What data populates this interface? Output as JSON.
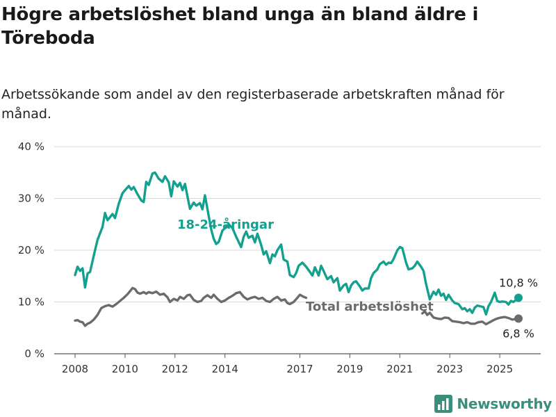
{
  "header": {
    "title": "Högre arbetslöshet bland unga än bland äldre i Töreboda",
    "subtitle": "Arbetssökande som andel av den registerbaserade arbetskraften månad för månad."
  },
  "brand": {
    "name": "Newsworthy",
    "logo_icon": "bar-chart-logo-icon",
    "color": "#3a8e7e"
  },
  "chart_data": {
    "type": "line",
    "title": "Högre arbetslöshet bland unga än bland äldre i Töreboda",
    "subtitle": "Arbetssökande som andel av den registerbaserade arbetskraften månad för månad.",
    "xlabel": "",
    "ylabel": "",
    "x_domain": [
      2008,
      2025.75
    ],
    "ylim": [
      0,
      40
    ],
    "y_ticks": [
      0,
      10,
      20,
      30,
      40
    ],
    "y_tick_labels": [
      "0 %",
      "10 %",
      "20 %",
      "30 %",
      "40 %"
    ],
    "x_ticks": [
      2008,
      2010,
      2012,
      2014,
      2017,
      2019,
      2021,
      2023,
      2025
    ],
    "x_tick_labels": [
      "2008",
      "2010",
      "2012",
      "2014",
      "2017",
      "2019",
      "2021",
      "2023",
      "2025"
    ],
    "grid": "horizontal",
    "series": [
      {
        "name": "18-24-åringar",
        "color": "#13a08f",
        "end_label": "10,8 %",
        "points": [
          [
            2008.0,
            15.2
          ],
          [
            2008.1,
            16.8
          ],
          [
            2008.2,
            16.0
          ],
          [
            2008.3,
            16.5
          ],
          [
            2008.4,
            12.8
          ],
          [
            2008.5,
            15.5
          ],
          [
            2008.6,
            15.8
          ],
          [
            2008.75,
            19.0
          ],
          [
            2008.9,
            22.0
          ],
          [
            2009.1,
            24.5
          ],
          [
            2009.2,
            27.2
          ],
          [
            2009.3,
            25.8
          ],
          [
            2009.5,
            27.0
          ],
          [
            2009.6,
            26.2
          ],
          [
            2009.75,
            29.0
          ],
          [
            2009.9,
            31.0
          ],
          [
            2010.0,
            31.6
          ],
          [
            2010.15,
            32.4
          ],
          [
            2010.25,
            31.7
          ],
          [
            2010.35,
            32.2
          ],
          [
            2010.5,
            30.8
          ],
          [
            2010.65,
            29.6
          ],
          [
            2010.75,
            29.3
          ],
          [
            2010.85,
            33.2
          ],
          [
            2010.95,
            32.6
          ],
          [
            2011.1,
            34.8
          ],
          [
            2011.2,
            35.0
          ],
          [
            2011.35,
            33.8
          ],
          [
            2011.5,
            33.2
          ],
          [
            2011.6,
            34.3
          ],
          [
            2011.75,
            33.1
          ],
          [
            2011.85,
            30.4
          ],
          [
            2011.95,
            33.3
          ],
          [
            2012.1,
            32.3
          ],
          [
            2012.2,
            33.0
          ],
          [
            2012.3,
            31.6
          ],
          [
            2012.4,
            32.8
          ],
          [
            2012.5,
            30.4
          ],
          [
            2012.6,
            28.0
          ],
          [
            2012.75,
            29.2
          ],
          [
            2012.85,
            28.6
          ],
          [
            2013.0,
            29.1
          ],
          [
            2013.1,
            27.9
          ],
          [
            2013.2,
            30.6
          ],
          [
            2013.35,
            26.6
          ],
          [
            2013.45,
            24.0
          ],
          [
            2013.55,
            22.2
          ],
          [
            2013.65,
            21.2
          ],
          [
            2013.75,
            21.6
          ],
          [
            2013.9,
            23.8
          ],
          [
            2014.05,
            24.5
          ],
          [
            2014.15,
            25.0
          ],
          [
            2014.3,
            24.3
          ],
          [
            2014.45,
            22.6
          ],
          [
            2014.55,
            21.6
          ],
          [
            2014.65,
            20.6
          ],
          [
            2014.75,
            22.6
          ],
          [
            2014.85,
            23.6
          ],
          [
            2014.95,
            22.4
          ],
          [
            2015.1,
            22.8
          ],
          [
            2015.2,
            21.5
          ],
          [
            2015.3,
            23.2
          ],
          [
            2015.45,
            21.0
          ],
          [
            2015.55,
            19.2
          ],
          [
            2015.65,
            19.8
          ],
          [
            2015.8,
            17.5
          ],
          [
            2015.9,
            19.2
          ],
          [
            2016.0,
            18.8
          ],
          [
            2016.1,
            20.0
          ],
          [
            2016.25,
            21.1
          ],
          [
            2016.35,
            18.2
          ],
          [
            2016.5,
            17.8
          ],
          [
            2016.6,
            15.2
          ],
          [
            2016.75,
            14.8
          ],
          [
            2016.85,
            15.6
          ],
          [
            2016.95,
            17.0
          ],
          [
            2017.1,
            17.6
          ],
          [
            2017.25,
            16.8
          ],
          [
            2017.4,
            15.8
          ],
          [
            2017.5,
            15.1
          ],
          [
            2017.6,
            16.7
          ],
          [
            2017.75,
            15.1
          ],
          [
            2017.85,
            17.0
          ],
          [
            2017.95,
            16.0
          ],
          [
            2018.1,
            14.4
          ],
          [
            2018.25,
            15.0
          ],
          [
            2018.35,
            13.8
          ],
          [
            2018.5,
            14.6
          ],
          [
            2018.6,
            12.2
          ],
          [
            2018.75,
            13.2
          ],
          [
            2018.85,
            13.5
          ],
          [
            2018.95,
            11.9
          ],
          [
            2019.05,
            13.2
          ],
          [
            2019.15,
            13.8
          ],
          [
            2019.25,
            14.0
          ],
          [
            2019.4,
            13.0
          ],
          [
            2019.5,
            12.2
          ],
          [
            2019.6,
            12.6
          ],
          [
            2019.75,
            12.6
          ],
          [
            2019.85,
            14.6
          ],
          [
            2019.95,
            15.6
          ],
          [
            2020.1,
            16.3
          ],
          [
            2020.2,
            17.3
          ],
          [
            2020.35,
            17.8
          ],
          [
            2020.45,
            17.2
          ],
          [
            2020.55,
            17.6
          ],
          [
            2020.65,
            17.5
          ],
          [
            2020.75,
            18.3
          ],
          [
            2020.9,
            20.0
          ],
          [
            2021.0,
            20.6
          ],
          [
            2021.1,
            20.4
          ],
          [
            2021.25,
            17.6
          ],
          [
            2021.35,
            16.3
          ],
          [
            2021.5,
            16.5
          ],
          [
            2021.6,
            17.0
          ],
          [
            2021.7,
            17.8
          ],
          [
            2021.85,
            16.8
          ],
          [
            2021.95,
            16.0
          ],
          [
            2022.05,
            13.5
          ],
          [
            2022.2,
            10.5
          ],
          [
            2022.35,
            12.0
          ],
          [
            2022.45,
            11.4
          ],
          [
            2022.55,
            12.4
          ],
          [
            2022.65,
            11.2
          ],
          [
            2022.75,
            11.6
          ],
          [
            2022.85,
            10.4
          ],
          [
            2022.95,
            11.4
          ],
          [
            2023.1,
            10.3
          ],
          [
            2023.2,
            9.8
          ],
          [
            2023.35,
            9.6
          ],
          [
            2023.5,
            8.6
          ],
          [
            2023.6,
            8.8
          ],
          [
            2023.7,
            8.2
          ],
          [
            2023.8,
            8.6
          ],
          [
            2023.9,
            7.9
          ],
          [
            2024.0,
            8.9
          ],
          [
            2024.1,
            9.3
          ],
          [
            2024.2,
            9.2
          ],
          [
            2024.35,
            9.0
          ],
          [
            2024.45,
            7.6
          ],
          [
            2024.55,
            9.2
          ],
          [
            2024.65,
            10.0
          ],
          [
            2024.8,
            11.8
          ],
          [
            2024.9,
            10.2
          ],
          [
            2025.0,
            10.0
          ],
          [
            2025.1,
            10.1
          ],
          [
            2025.25,
            10.0
          ],
          [
            2025.35,
            9.5
          ],
          [
            2025.45,
            10.2
          ],
          [
            2025.55,
            10.0
          ],
          [
            2025.65,
            10.4
          ],
          [
            2025.75,
            10.8
          ]
        ]
      },
      {
        "name": "Total arbetslöshet",
        "color": "#6b6b6e",
        "end_label": "6,8 %",
        "points": [
          [
            2008.0,
            6.4
          ],
          [
            2008.1,
            6.5
          ],
          [
            2008.2,
            6.2
          ],
          [
            2008.3,
            6.1
          ],
          [
            2008.4,
            5.4
          ],
          [
            2008.5,
            5.8
          ],
          [
            2008.6,
            6.0
          ],
          [
            2008.75,
            6.6
          ],
          [
            2008.9,
            7.5
          ],
          [
            2009.05,
            8.8
          ],
          [
            2009.2,
            9.2
          ],
          [
            2009.35,
            9.4
          ],
          [
            2009.5,
            9.1
          ],
          [
            2009.65,
            9.6
          ],
          [
            2009.8,
            10.2
          ],
          [
            2009.95,
            10.8
          ],
          [
            2010.1,
            11.5
          ],
          [
            2010.2,
            12.1
          ],
          [
            2010.3,
            12.7
          ],
          [
            2010.4,
            12.5
          ],
          [
            2010.5,
            11.8
          ],
          [
            2010.6,
            11.6
          ],
          [
            2010.75,
            11.9
          ],
          [
            2010.85,
            11.6
          ],
          [
            2010.95,
            11.9
          ],
          [
            2011.1,
            11.7
          ],
          [
            2011.25,
            12.0
          ],
          [
            2011.4,
            11.4
          ],
          [
            2011.55,
            11.6
          ],
          [
            2011.7,
            10.9
          ],
          [
            2011.8,
            10.0
          ],
          [
            2011.95,
            10.6
          ],
          [
            2012.1,
            10.3
          ],
          [
            2012.2,
            11.0
          ],
          [
            2012.35,
            10.6
          ],
          [
            2012.5,
            11.3
          ],
          [
            2012.6,
            11.4
          ],
          [
            2012.75,
            10.4
          ],
          [
            2012.9,
            10.0
          ],
          [
            2013.05,
            10.2
          ],
          [
            2013.15,
            10.8
          ],
          [
            2013.3,
            11.3
          ],
          [
            2013.45,
            10.8
          ],
          [
            2013.55,
            11.4
          ],
          [
            2013.7,
            10.6
          ],
          [
            2013.85,
            10.0
          ],
          [
            2014.0,
            10.3
          ],
          [
            2014.15,
            10.8
          ],
          [
            2014.3,
            11.2
          ],
          [
            2014.45,
            11.7
          ],
          [
            2014.6,
            11.9
          ],
          [
            2014.75,
            11.0
          ],
          [
            2014.9,
            10.5
          ],
          [
            2015.05,
            10.8
          ],
          [
            2015.2,
            11.0
          ],
          [
            2015.35,
            10.6
          ],
          [
            2015.5,
            10.8
          ],
          [
            2015.65,
            10.2
          ],
          [
            2015.8,
            10.0
          ],
          [
            2015.95,
            10.6
          ],
          [
            2016.1,
            11.0
          ],
          [
            2016.25,
            10.3
          ],
          [
            2016.4,
            10.5
          ],
          [
            2016.5,
            9.8
          ],
          [
            2016.6,
            9.6
          ],
          [
            2016.75,
            10.0
          ],
          [
            2016.9,
            10.8
          ],
          [
            2017.0,
            11.4
          ],
          [
            2017.15,
            11.0
          ],
          [
            2017.25,
            10.8
          ],
          [
            2021.9,
            7.8
          ],
          [
            2022.0,
            8.2
          ],
          [
            2022.1,
            7.5
          ],
          [
            2022.2,
            7.9
          ],
          [
            2022.35,
            7.0
          ],
          [
            2022.5,
            6.8
          ],
          [
            2022.65,
            6.7
          ],
          [
            2022.8,
            7.0
          ],
          [
            2022.95,
            6.9
          ],
          [
            2023.1,
            6.3
          ],
          [
            2023.25,
            6.2
          ],
          [
            2023.4,
            6.1
          ],
          [
            2023.55,
            5.9
          ],
          [
            2023.7,
            6.1
          ],
          [
            2023.85,
            5.8
          ],
          [
            2024.0,
            5.8
          ],
          [
            2024.15,
            6.1
          ],
          [
            2024.3,
            6.2
          ],
          [
            2024.45,
            5.7
          ],
          [
            2024.6,
            6.1
          ],
          [
            2024.75,
            6.5
          ],
          [
            2024.9,
            6.8
          ],
          [
            2025.05,
            7.0
          ],
          [
            2025.2,
            7.1
          ],
          [
            2025.35,
            6.9
          ],
          [
            2025.5,
            6.6
          ],
          [
            2025.65,
            6.7
          ],
          [
            2025.75,
            6.8
          ]
        ]
      }
    ]
  }
}
